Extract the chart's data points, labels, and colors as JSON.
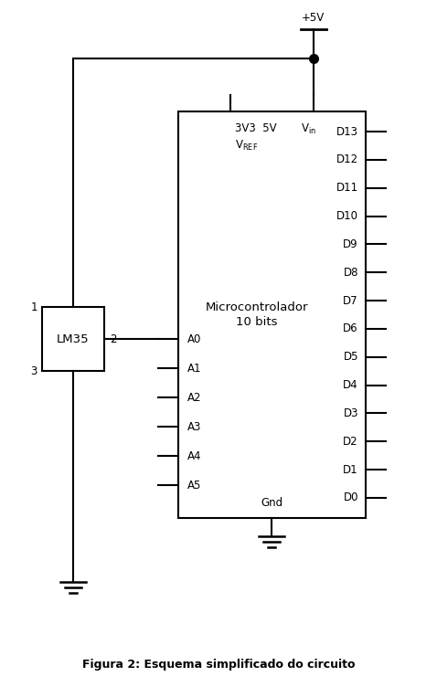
{
  "fig_width": 4.78,
  "fig_height": 7.52,
  "dpi": 100,
  "bg_color": "#ffffff",
  "line_color": "#000000",
  "line_width": 1.5,
  "title": "Figura 2: Esquema simplificado do circuito",
  "title_fontsize": 9,
  "mc_label": "Microcontrolador\n10 bits",
  "vcc_label": "+5V",
  "gnd_label": "Gnd",
  "digital_pins": [
    "D13",
    "D12",
    "D11",
    "D10",
    "D9",
    "D8",
    "D7",
    "D6",
    "D5",
    "D4",
    "D3",
    "D2",
    "D1",
    "D0"
  ],
  "analog_pins": [
    "A0",
    "A1",
    "A2",
    "A3",
    "A4",
    "A5"
  ],
  "lm35_label": "LM35",
  "font_size_pins": 8.5,
  "font_size_labels": 8.5,
  "font_size_mc": 9.5
}
